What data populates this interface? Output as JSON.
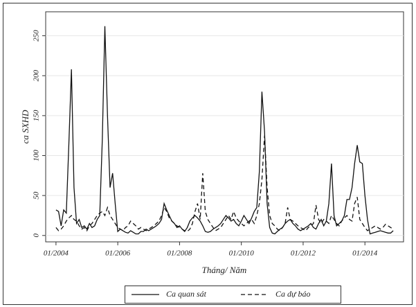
{
  "chart_data": {
    "type": "line",
    "y_label": "ca SXHD",
    "x_label": "Tháng/ Năm",
    "x": [
      "2004-01",
      "2004-02",
      "2004-03",
      "2004-04",
      "2004-05",
      "2004-06",
      "2004-07",
      "2004-08",
      "2004-09",
      "2004-10",
      "2004-11",
      "2004-12",
      "2005-01",
      "2005-02",
      "2005-03",
      "2005-04",
      "2005-05",
      "2005-06",
      "2005-07",
      "2005-08",
      "2005-09",
      "2005-10",
      "2005-11",
      "2005-12",
      "2006-01",
      "2006-02",
      "2006-03",
      "2006-04",
      "2006-05",
      "2006-06",
      "2006-07",
      "2006-08",
      "2006-09",
      "2006-10",
      "2006-11",
      "2006-12",
      "2007-01",
      "2007-02",
      "2007-03",
      "2007-04",
      "2007-05",
      "2007-06",
      "2007-07",
      "2007-08",
      "2007-09",
      "2007-10",
      "2007-11",
      "2007-12",
      "2008-01",
      "2008-02",
      "2008-03",
      "2008-04",
      "2008-05",
      "2008-06",
      "2008-07",
      "2008-08",
      "2008-09",
      "2008-10",
      "2008-11",
      "2008-12",
      "2009-01",
      "2009-02",
      "2009-03",
      "2009-04",
      "2009-05",
      "2009-06",
      "2009-07",
      "2009-08",
      "2009-09",
      "2009-10",
      "2009-11",
      "2009-12",
      "2010-01",
      "2010-02",
      "2010-03",
      "2010-04",
      "2010-05",
      "2010-06",
      "2010-07",
      "2010-08",
      "2010-09",
      "2010-10",
      "2010-11",
      "2010-12",
      "2011-01",
      "2011-02",
      "2011-03",
      "2011-04",
      "2011-05",
      "2011-06",
      "2011-07",
      "2011-08",
      "2011-09",
      "2011-10",
      "2011-11",
      "2011-12",
      "2012-01",
      "2012-02",
      "2012-03",
      "2012-04",
      "2012-05",
      "2012-06",
      "2012-07",
      "2012-08",
      "2012-09",
      "2012-10",
      "2012-11",
      "2012-12",
      "2013-01",
      "2013-02",
      "2013-03",
      "2013-04",
      "2013-05",
      "2013-06",
      "2013-07",
      "2013-08",
      "2013-09",
      "2013-10",
      "2013-11",
      "2013-12",
      "2014-01",
      "2014-02",
      "2014-03",
      "2014-04",
      "2014-05",
      "2014-06",
      "2014-07",
      "2014-08",
      "2014-09",
      "2014-10",
      "2014-11",
      "2014-12"
    ],
    "series": [
      {
        "name": "Ca quan sát",
        "color": "#111111",
        "dash": "solid",
        "values": [
          32,
          30,
          12,
          32,
          28,
          115,
          208,
          60,
          15,
          20,
          10,
          12,
          8,
          15,
          10,
          12,
          20,
          25,
          120,
          262,
          150,
          60,
          78,
          40,
          5,
          8,
          6,
          4,
          3,
          6,
          4,
          2,
          2,
          5,
          5,
          8,
          6,
          8,
          10,
          12,
          15,
          20,
          40,
          32,
          25,
          18,
          15,
          10,
          12,
          8,
          5,
          10,
          18,
          22,
          25,
          22,
          18,
          12,
          5,
          4,
          5,
          8,
          10,
          12,
          15,
          20,
          25,
          22,
          18,
          20,
          15,
          12,
          18,
          25,
          20,
          15,
          22,
          30,
          35,
          80,
          180,
          130,
          40,
          10,
          3,
          2,
          5,
          8,
          10,
          15,
          18,
          20,
          15,
          12,
          8,
          6,
          8,
          10,
          12,
          15,
          10,
          8,
          15,
          20,
          12,
          18,
          40,
          90,
          25,
          12,
          15,
          18,
          25,
          45,
          45,
          60,
          90,
          113,
          92,
          90,
          50,
          20,
          2,
          3,
          4,
          5,
          6,
          5,
          4,
          3,
          3,
          6
        ]
      },
      {
        "name": "Ca dự báo",
        "color": "#111111",
        "dash": "dashed",
        "values": [
          10,
          6,
          8,
          12,
          18,
          22,
          25,
          20,
          18,
          12,
          8,
          10,
          6,
          12,
          15,
          20,
          25,
          28,
          30,
          25,
          35,
          25,
          20,
          15,
          10,
          8,
          6,
          10,
          12,
          18,
          15,
          12,
          8,
          10,
          8,
          6,
          8,
          10,
          12,
          15,
          18,
          25,
          35,
          30,
          22,
          18,
          15,
          12,
          10,
          8,
          6,
          5,
          8,
          15,
          30,
          40,
          20,
          78,
          30,
          20,
          15,
          10,
          6,
          8,
          10,
          15,
          20,
          25,
          20,
          30,
          22,
          18,
          15,
          12,
          15,
          18,
          20,
          15,
          25,
          40,
          70,
          125,
          60,
          25,
          15,
          12,
          8,
          6,
          10,
          15,
          35,
          20,
          18,
          15,
          12,
          10,
          8,
          6,
          10,
          12,
          15,
          38,
          20,
          15,
          20,
          18,
          15,
          25,
          20,
          15,
          12,
          18,
          22,
          25,
          20,
          18,
          40,
          48,
          20,
          15,
          10,
          6,
          8,
          10,
          12,
          10,
          8,
          10,
          14,
          12,
          10,
          8
        ]
      }
    ],
    "xlim": [
      "2003-09",
      "2015-04"
    ],
    "xticks": [
      {
        "value": "2004-01",
        "label": "01/2004"
      },
      {
        "value": "2006-01",
        "label": "01/2006"
      },
      {
        "value": "2008-01",
        "label": "01/2008"
      },
      {
        "value": "2010-01",
        "label": "01/2010"
      },
      {
        "value": "2012-01",
        "label": "01/2012"
      },
      {
        "value": "2014-01",
        "label": "01/2014"
      }
    ],
    "ylim": [
      -8,
      280
    ],
    "yticks": [
      0,
      50,
      100,
      150,
      200,
      250
    ],
    "grid": true,
    "legend": "bottom"
  }
}
